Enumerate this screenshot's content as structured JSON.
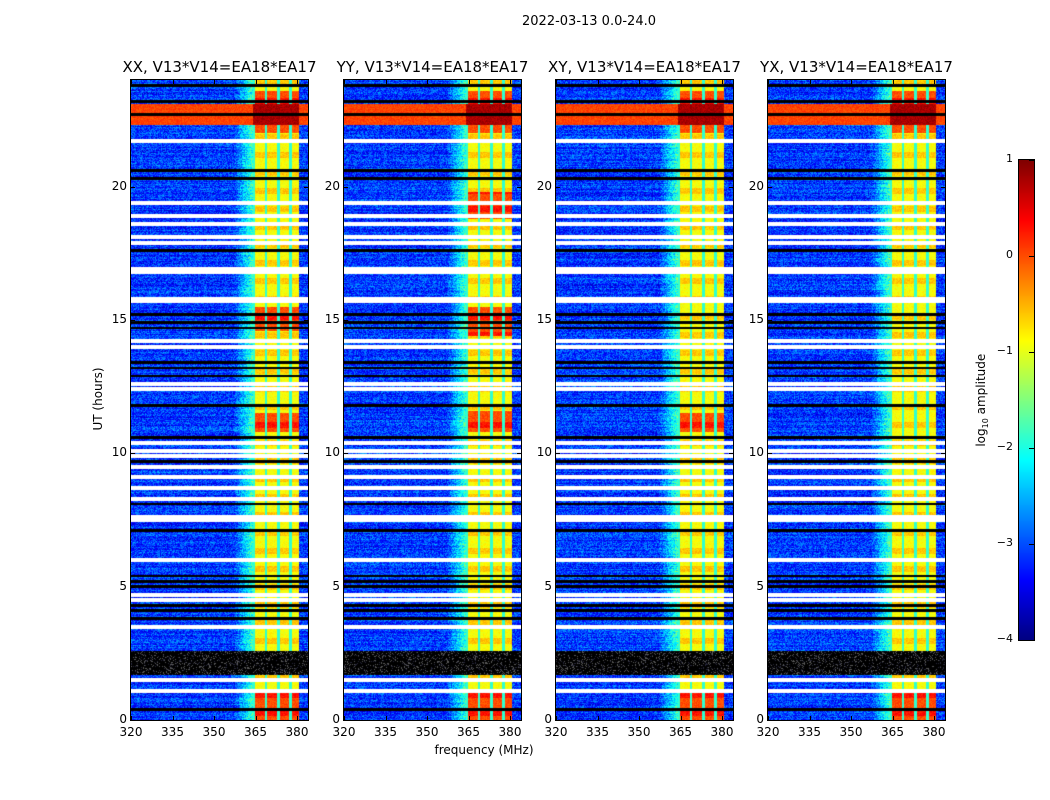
{
  "suptitle": "2022-03-13 0.0-24.0",
  "chart_data": {
    "type": "heatmap",
    "title": "2022-03-13 0.0-24.0",
    "xlabel": "frequency (MHz)",
    "ylabel": "UT (hours)",
    "xlim": [
      320,
      384
    ],
    "ylim": [
      0,
      24
    ],
    "xticks": [
      320,
      335,
      350,
      365,
      380
    ],
    "yticks": [
      0,
      5,
      10,
      15,
      20
    ],
    "panels": [
      {
        "title": "XX, V13*V14=EA18*EA17",
        "hot_hours": [
          [
            22.0,
            23.6
          ],
          [
            14.6,
            15.5
          ],
          [
            10.8,
            11.5
          ],
          [
            0,
            1
          ]
        ]
      },
      {
        "title": "YY, V13*V14=EA18*EA17",
        "hot_hours": [
          [
            22.0,
            23.6
          ],
          [
            18.8,
            19.8
          ],
          [
            14.4,
            15.5
          ],
          [
            10.8,
            11.6
          ],
          [
            0,
            1
          ]
        ]
      },
      {
        "title": "XY, V13*V14=EA18*EA17",
        "hot_hours": [
          [
            22.0,
            23.6
          ],
          [
            10.8,
            11.5
          ],
          [
            0,
            1
          ]
        ]
      },
      {
        "title": "YX, V13*V14=EA18*EA17",
        "hot_hours": [
          [
            22.0,
            23.6
          ],
          [
            0,
            1
          ]
        ]
      }
    ],
    "rfi_band_mhz": [
      364,
      380
    ],
    "rfi_row_hours": [
      22.3,
      23.1
    ],
    "flagged_white_hours": [
      21.7,
      19.4,
      18.9,
      18.6,
      18.1,
      17.9,
      16.9,
      16.8,
      15.8,
      15.7,
      14.2,
      14.0,
      12.6,
      12.4,
      10.4,
      10.1,
      9.9,
      9.5,
      9.1,
      8.7,
      8.3,
      7.6,
      7.5,
      6.0,
      4.7,
      4.5,
      3.5,
      1.5,
      1.1
    ],
    "flagged_black_hours": [
      23.8,
      23.2,
      22.7,
      20.6,
      20.3,
      17.6,
      15.2,
      14.9,
      14.7,
      13.4,
      13.2,
      12.9,
      11.8,
      10.6,
      9.7,
      8.1,
      7.1,
      5.4,
      5.2,
      5.0,
      4.3,
      4.1,
      3.8,
      0.4
    ],
    "speckle_hours": [
      1.7,
      2.6
    ],
    "colorbar": {
      "label_prefix": "log",
      "label_sub": "10",
      "label_suffix": " amplitude",
      "range": [
        -4,
        1
      ],
      "ticks": [
        "1",
        "0",
        "−1",
        "−2",
        "−3",
        "−4"
      ],
      "colormap": "jet"
    }
  }
}
